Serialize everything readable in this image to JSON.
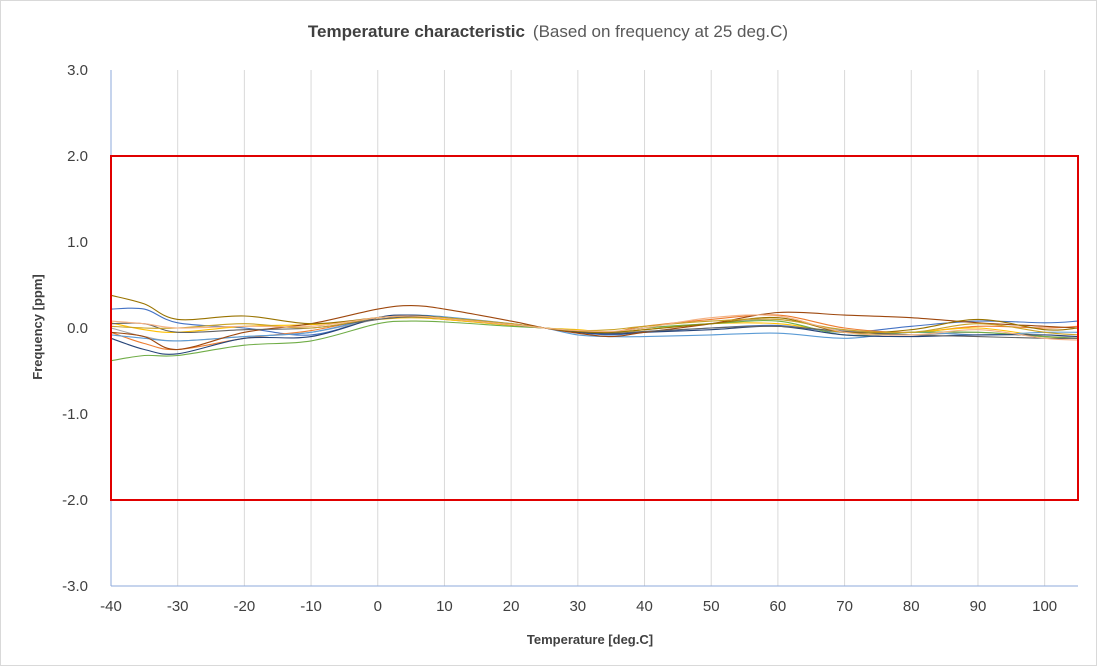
{
  "chart_data": {
    "type": "line",
    "title": "Temperature characteristic",
    "subtitle": "(Based on frequency at 25 deg.C)",
    "xlabel": "Temperature [deg.C]",
    "ylabel": "Frequency [ppm]",
    "xlim": [
      -40,
      105
    ],
    "ylim": [
      -3.0,
      3.0
    ],
    "x_ticks": [
      "-40",
      "-30",
      "-20",
      "-10",
      "0",
      "10",
      "20",
      "30",
      "40",
      "50",
      "60",
      "70",
      "80",
      "90",
      "100"
    ],
    "y_ticks": [
      "3.0",
      "2.0",
      "1.0",
      "0.0",
      "-1.0",
      "-2.0",
      "-3.0"
    ],
    "grid": "vertical",
    "legend": "none",
    "limit_box": {
      "x": [
        -40,
        105
      ],
      "y": [
        -2.0,
        2.0
      ],
      "color": "#e00000"
    },
    "x": [
      -40,
      -35,
      -30,
      -20,
      -10,
      0,
      5,
      10,
      20,
      25,
      30,
      35,
      40,
      50,
      60,
      70,
      80,
      90,
      100,
      105
    ],
    "series": [
      {
        "color": "#4472c4",
        "values": [
          0.22,
          0.22,
          0.06,
          0.0,
          -0.08,
          0.12,
          0.14,
          0.12,
          0.04,
          0.0,
          -0.05,
          -0.08,
          -0.05,
          0.0,
          0.03,
          -0.05,
          0.02,
          0.08,
          0.06,
          0.08
        ]
      },
      {
        "color": "#ed7d31",
        "values": [
          -0.05,
          -0.18,
          -0.25,
          -0.12,
          -0.03,
          0.12,
          0.14,
          0.1,
          0.04,
          0.0,
          -0.04,
          -0.05,
          0.02,
          0.1,
          0.15,
          0.0,
          -0.05,
          0.02,
          0.0,
          0.02
        ]
      },
      {
        "color": "#a5a5a5",
        "values": [
          0.0,
          -0.1,
          -0.15,
          -0.1,
          -0.05,
          0.1,
          0.12,
          0.1,
          0.03,
          0.0,
          -0.03,
          -0.05,
          0.0,
          0.05,
          0.1,
          -0.03,
          -0.08,
          -0.05,
          -0.1,
          -0.1
        ]
      },
      {
        "color": "#ffc000",
        "values": [
          0.06,
          -0.02,
          -0.05,
          0.02,
          0.04,
          0.1,
          0.12,
          0.1,
          0.03,
          0.0,
          -0.02,
          -0.05,
          -0.02,
          0.05,
          0.05,
          -0.05,
          -0.05,
          0.0,
          -0.1,
          -0.12
        ]
      },
      {
        "color": "#5b9bd5",
        "values": [
          -0.08,
          -0.12,
          -0.15,
          -0.1,
          -0.05,
          0.12,
          0.15,
          0.13,
          0.05,
          0.0,
          -0.08,
          -0.1,
          -0.1,
          -0.08,
          -0.06,
          -0.12,
          -0.05,
          -0.08,
          -0.05,
          -0.05
        ]
      },
      {
        "color": "#70ad47",
        "values": [
          -0.38,
          -0.32,
          -0.32,
          -0.2,
          -0.15,
          0.05,
          0.08,
          0.07,
          0.02,
          0.0,
          -0.03,
          -0.05,
          0.0,
          0.05,
          0.08,
          -0.08,
          -0.05,
          -0.05,
          -0.1,
          -0.12
        ]
      },
      {
        "color": "#264478",
        "values": [
          -0.12,
          -0.25,
          -0.3,
          -0.12,
          -0.1,
          0.12,
          0.15,
          0.12,
          0.04,
          0.0,
          -0.05,
          -0.07,
          -0.05,
          -0.02,
          0.02,
          -0.08,
          -0.1,
          -0.08,
          -0.08,
          -0.1
        ]
      },
      {
        "color": "#9e480e",
        "values": [
          -0.05,
          -0.1,
          -0.25,
          -0.05,
          0.05,
          0.22,
          0.26,
          0.22,
          0.08,
          0.0,
          -0.06,
          -0.1,
          -0.05,
          0.05,
          0.18,
          0.15,
          0.12,
          0.06,
          0.02,
          0.0
        ]
      },
      {
        "color": "#636363",
        "values": [
          0.05,
          0.05,
          -0.05,
          -0.02,
          0.0,
          0.1,
          0.13,
          0.11,
          0.04,
          0.0,
          -0.04,
          -0.06,
          -0.04,
          0.0,
          0.02,
          -0.04,
          -0.08,
          -0.1,
          -0.12,
          -0.12
        ]
      },
      {
        "color": "#997300",
        "values": [
          0.38,
          0.28,
          0.1,
          0.14,
          0.05,
          0.12,
          0.14,
          0.12,
          0.05,
          0.0,
          -0.04,
          -0.05,
          -0.02,
          0.05,
          0.12,
          -0.05,
          -0.02,
          0.1,
          -0.02,
          0.0
        ]
      },
      {
        "color": "#c9a227",
        "values": [
          0.02,
          0.0,
          0.0,
          0.05,
          0.0,
          0.12,
          0.14,
          0.12,
          0.05,
          0.0,
          -0.03,
          -0.02,
          0.02,
          0.08,
          0.1,
          -0.02,
          -0.05,
          0.05,
          -0.05,
          -0.08
        ]
      },
      {
        "color": "#f4b183",
        "values": [
          0.08,
          0.05,
          0.0,
          0.02,
          0.02,
          0.12,
          0.14,
          0.11,
          0.04,
          0.0,
          -0.03,
          -0.04,
          0.0,
          0.12,
          0.14,
          -0.05,
          -0.08,
          -0.02,
          -0.12,
          -0.14
        ]
      }
    ]
  }
}
